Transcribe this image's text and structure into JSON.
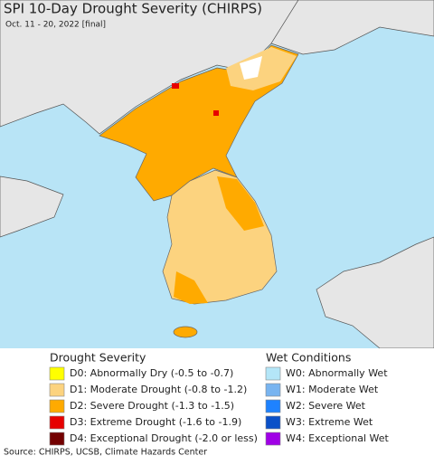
{
  "header": {
    "title": "SPI 10-Day Drought Severity (CHIRPS)",
    "subtitle": "Oct. 11 - 20, 2022 [final]"
  },
  "legend": {
    "drought": {
      "title": "Drought Severity",
      "items": [
        {
          "label": "D0: Abnormally Dry (-0.5 to -0.7)",
          "color": "#ffff00"
        },
        {
          "label": "D1: Moderate Drought (-0.8 to -1.2)",
          "color": "#fcd37f"
        },
        {
          "label": "D2: Severe Drought (-1.3 to -1.5)",
          "color": "#ffaa00"
        },
        {
          "label": "D3: Extreme Drought (-1.6 to -1.9)",
          "color": "#e60000"
        },
        {
          "label": "D4: Exceptional Drought (-2.0 or less)",
          "color": "#730000"
        }
      ]
    },
    "wet": {
      "title": "Wet Conditions",
      "items": [
        {
          "label": "W0: Abnormally Wet",
          "color": "#b4e6f8"
        },
        {
          "label": "W1: Moderate Wet",
          "color": "#78b4f0"
        },
        {
          "label": "W2: Severe Wet",
          "color": "#1e82ff"
        },
        {
          "label": "W3: Extreme Wet",
          "color": "#0a50c8"
        },
        {
          "label": "W4: Exceptional Wet",
          "color": "#a000e6"
        }
      ]
    }
  },
  "footer": {
    "source": "Source: CHIRPS, UCSB, Climate Hazards Center"
  }
}
